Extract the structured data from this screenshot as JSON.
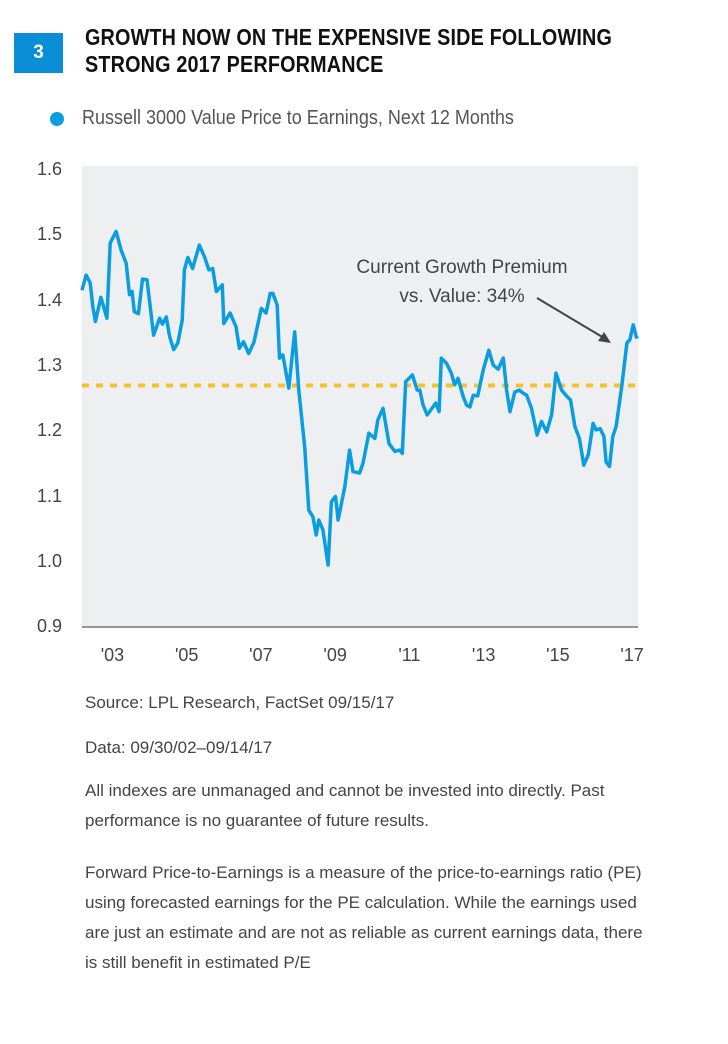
{
  "header": {
    "badge": "3",
    "title_line1": "GROWTH NOW ON THE EXPENSIVE SIDE FOLLOWING",
    "title_line2": "STRONG 2017 PERFORMANCE"
  },
  "chart_data": {
    "type": "line",
    "title": "GROWTH NOW ON THE EXPENSIVE SIDE FOLLOWING STRONG 2017 PERFORMANCE",
    "legend": {
      "placement": "top-left",
      "entries": [
        {
          "label": "Russell 3000 Value Price to Earnings, Next 12 Months",
          "color": "#0a9ee0"
        }
      ]
    },
    "xlabel": "",
    "ylabel": "",
    "ylim": [
      0.9,
      1.6
    ],
    "y_ticks": [
      "1.6",
      "1.5",
      "1.4",
      "1.3",
      "1.2",
      "1.1",
      "1.0",
      "0.9"
    ],
    "x_ticks": [
      "'03",
      "'05",
      "'07",
      "'09",
      "'11",
      "'13",
      "'15",
      "'17"
    ],
    "grid": false,
    "reference_line": {
      "value": 1.27,
      "style": "dashed",
      "color": "#f2c230"
    },
    "annotation": {
      "line1": "Current Growth Premium",
      "line2": "vs. Value: 34%"
    },
    "series": [
      {
        "name": "Russell 3000 Value Price to Earnings, Next 12 Months",
        "color": "#0a9ee0",
        "x": [
          2002.75,
          2002.86,
          2002.97,
          2003.04,
          2003.11,
          2003.26,
          2003.42,
          2003.51,
          2003.67,
          2003.8,
          2003.94,
          2004.03,
          2004.1,
          2004.16,
          2004.27,
          2004.38,
          2004.5,
          2004.68,
          2004.84,
          2004.92,
          2005.02,
          2005.11,
          2005.22,
          2005.33,
          2005.45,
          2005.51,
          2005.6,
          2005.73,
          2005.91,
          2006.05,
          2006.17,
          2006.27,
          2006.37,
          2006.53,
          2006.57,
          2006.74,
          2006.9,
          2006.99,
          2007.1,
          2007.24,
          2007.38,
          2007.58,
          2007.71,
          2007.82,
          2007.89,
          2008.01,
          2008.07,
          2008.16,
          2008.32,
          2008.48,
          2008.59,
          2008.75,
          2008.86,
          2008.97,
          2009.06,
          2009.13,
          2009.24,
          2009.38,
          2009.47,
          2009.58,
          2009.65,
          2009.83,
          2009.96,
          2010.05,
          2010.23,
          2010.32,
          2010.48,
          2010.64,
          2010.72,
          2010.86,
          2011.02,
          2011.18,
          2011.31,
          2011.38,
          2011.47,
          2011.65,
          2011.78,
          2011.85,
          2011.94,
          2012.05,
          2012.28,
          2012.37,
          2012.43,
          2012.57,
          2012.7,
          2012.79,
          2012.88,
          2013.02,
          2013.11,
          2013.2,
          2013.29,
          2013.41,
          2013.56,
          2013.71,
          2013.83,
          2013.96,
          2014.1,
          2014.19,
          2014.28,
          2014.41,
          2014.53,
          2014.64,
          2014.73,
          2014.86,
          2015.01,
          2015.13,
          2015.27,
          2015.4,
          2015.52,
          2015.67,
          2015.82,
          2015.91,
          2016.03,
          2016.15,
          2016.27,
          2016.39,
          2016.52,
          2016.6,
          2016.71,
          2016.81,
          2016.87,
          2016.96,
          2017.05,
          2017.14,
          2017.29,
          2017.43,
          2017.51,
          2017.6,
          2017.68,
          2017.71
        ],
        "values": [
          1.416,
          1.439,
          1.427,
          1.391,
          1.368,
          1.405,
          1.373,
          1.488,
          1.506,
          1.478,
          1.457,
          1.409,
          1.414,
          1.383,
          1.38,
          1.433,
          1.432,
          1.347,
          1.373,
          1.364,
          1.375,
          1.345,
          1.325,
          1.335,
          1.37,
          1.447,
          1.466,
          1.449,
          1.485,
          1.467,
          1.447,
          1.449,
          1.414,
          1.424,
          1.365,
          1.381,
          1.36,
          1.327,
          1.337,
          1.319,
          1.336,
          1.388,
          1.381,
          1.411,
          1.411,
          1.393,
          1.312,
          1.317,
          1.266,
          1.352,
          1.263,
          1.176,
          1.079,
          1.069,
          1.041,
          1.064,
          1.049,
          0.995,
          1.092,
          1.1,
          1.064,
          1.115,
          1.171,
          1.138,
          1.136,
          1.151,
          1.197,
          1.189,
          1.217,
          1.235,
          1.181,
          1.169,
          1.171,
          1.166,
          1.276,
          1.286,
          1.263,
          1.263,
          1.24,
          1.225,
          1.243,
          1.23,
          1.312,
          1.304,
          1.289,
          1.271,
          1.281,
          1.253,
          1.24,
          1.237,
          1.255,
          1.254,
          1.294,
          1.324,
          1.301,
          1.295,
          1.312,
          1.263,
          1.23,
          1.26,
          1.263,
          1.258,
          1.255,
          1.235,
          1.194,
          1.215,
          1.199,
          1.225,
          1.289,
          1.263,
          1.253,
          1.248,
          1.207,
          1.189,
          1.148,
          1.164,
          1.212,
          1.202,
          1.204,
          1.192,
          1.153,
          1.146,
          1.192,
          1.207,
          1.268,
          1.335,
          1.34,
          1.363,
          1.345,
          1.342
        ]
      }
    ]
  },
  "notes": {
    "source": "Source: LPL Research, FactSet   09/15/17",
    "data_range": "Data: 09/30/02–09/14/17",
    "disclaimer": "All indexes are unmanaged and cannot be invested into directly. Past performance is no guarantee of future results.",
    "definition": "Forward Price-to-Earnings is a measure of the price-to-earnings ratio (PE) using forecasted earnings for the PE calculation. While the earnings used are just an estimate and are not as reliable as current earnings data, there is still benefit in estimated P/E"
  }
}
